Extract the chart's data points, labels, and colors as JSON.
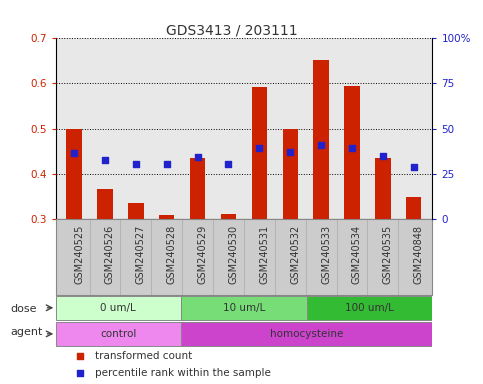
{
  "title": "GDS3413 / 203111",
  "samples": [
    "GSM240525",
    "GSM240526",
    "GSM240527",
    "GSM240528",
    "GSM240529",
    "GSM240530",
    "GSM240531",
    "GSM240532",
    "GSM240533",
    "GSM240534",
    "GSM240535",
    "GSM240848"
  ],
  "red_values": [
    0.5,
    0.365,
    0.335,
    0.308,
    0.435,
    0.31,
    0.592,
    0.498,
    0.652,
    0.595,
    0.435,
    0.348
  ],
  "blue_values": [
    0.445,
    0.43,
    0.422,
    0.422,
    0.438,
    0.422,
    0.458,
    0.447,
    0.463,
    0.458,
    0.44,
    0.415
  ],
  "red_base": 0.3,
  "ylim_left": [
    0.3,
    0.7
  ],
  "ylim_right": [
    0,
    100
  ],
  "yticks_left": [
    0.3,
    0.4,
    0.5,
    0.6,
    0.7
  ],
  "yticks_right": [
    0,
    25,
    50,
    75,
    100
  ],
  "yticklabels_right": [
    "0",
    "25",
    "50",
    "75",
    "100%"
  ],
  "dose_groups": [
    {
      "label": "0 um/L",
      "start": 0,
      "end": 4,
      "color": "#ccffcc"
    },
    {
      "label": "10 um/L",
      "start": 4,
      "end": 8,
      "color": "#77dd77"
    },
    {
      "label": "100 um/L",
      "start": 8,
      "end": 12,
      "color": "#33bb33"
    }
  ],
  "agent_groups": [
    {
      "label": "control",
      "start": 0,
      "end": 4,
      "color": "#ee88ee"
    },
    {
      "label": "homocysteine",
      "start": 4,
      "end": 12,
      "color": "#cc44cc"
    }
  ],
  "red_color": "#cc2200",
  "blue_color": "#2222cc",
  "bar_width": 0.5,
  "bg_color": "#ffffff",
  "plot_bg": "#e8e8e8",
  "xtick_bg": "#cccccc",
  "legend_red": "transformed count",
  "legend_blue": "percentile rank within the sample",
  "xlabel_dose": "dose",
  "xlabel_agent": "agent",
  "title_fontsize": 10,
  "tick_label_fontsize": 7,
  "axis_label_fontsize": 8,
  "legend_fontsize": 7.5
}
